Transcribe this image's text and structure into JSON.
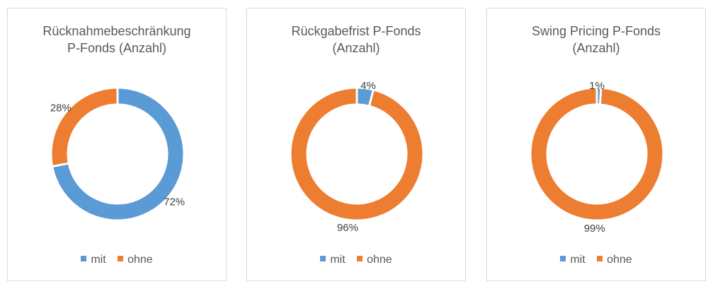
{
  "colors": {
    "mit": "#5b9bd5",
    "ohne": "#ed7d31"
  },
  "chart_data": [
    {
      "type": "pie",
      "title": [
        "Rücknahmebeschränkung",
        "P-Fonds (Anzahl)"
      ],
      "categories": [
        "mit",
        "ohne"
      ],
      "values": [
        72,
        28
      ],
      "labels": [
        "72%",
        "28%"
      ],
      "legend": [
        "mit",
        "ohne"
      ],
      "legend_position": "bottom"
    },
    {
      "type": "pie",
      "title": [
        "Rückgabefrist P-Fonds",
        "(Anzahl)"
      ],
      "categories": [
        "mit",
        "ohne"
      ],
      "values": [
        4,
        96
      ],
      "labels": [
        "4%",
        "96%"
      ],
      "legend": [
        "mit",
        "ohne"
      ],
      "legend_position": "bottom"
    },
    {
      "type": "pie",
      "title": [
        "Swing Pricing P-Fonds",
        "(Anzahl)"
      ],
      "categories": [
        "mit",
        "ohne"
      ],
      "values": [
        1,
        99
      ],
      "labels": [
        "1%",
        "99%"
      ],
      "legend": [
        "mit",
        "ohne"
      ],
      "legend_position": "bottom"
    }
  ]
}
